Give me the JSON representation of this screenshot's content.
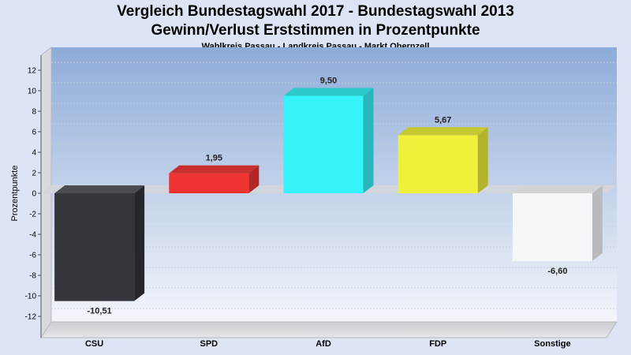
{
  "chart_data": {
    "type": "bar",
    "title": "Vergleich Bundestagswahl 2017 - Bundestagswahl 2013",
    "subtitle": "Gewinn/Verlust Erststimmen in Prozentpunkte",
    "subtitle2": "Wahlkreis Passau - Landkreis Passau - Markt Obernzell",
    "xlabel": "",
    "ylabel": "Prozentpunkte",
    "ylim": [
      -13,
      13
    ],
    "yticks": [
      12,
      10,
      8,
      6,
      4,
      2,
      0,
      -2,
      -4,
      -6,
      -8,
      -10,
      -12
    ],
    "categories": [
      "CSU",
      "SPD",
      "AfD",
      "FDP",
      "Sonstige"
    ],
    "values": [
      -10.51,
      1.95,
      9.5,
      5.67,
      -6.6
    ],
    "value_labels": [
      "-10,51",
      "1,95",
      "9,50",
      "5,67",
      "-6,60"
    ],
    "colors": [
      "#34363c",
      "#ef3434",
      "#35f3f8",
      "#eef039",
      "#f6f7fb"
    ],
    "side_colors": [
      "#25272b",
      "#b22626",
      "#28b6ba",
      "#b3b42b",
      "#b9babd"
    ],
    "top_colors": [
      "#4a4c52",
      "#c83030",
      "#2cc8cc",
      "#c6c832",
      "#d2d3d6"
    ],
    "grid": true,
    "legend": "none"
  }
}
